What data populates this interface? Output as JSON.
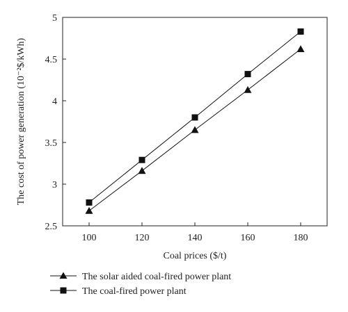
{
  "chart_data": {
    "type": "line",
    "title": "",
    "xlabel": "Coal prices ($/t)",
    "ylabel": "The cost of power generation (10⁻²$/kWh)",
    "x": [
      100,
      120,
      140,
      160,
      180
    ],
    "xlim": [
      90,
      190
    ],
    "ylim": [
      2.5,
      5
    ],
    "xticks": [
      100,
      120,
      140,
      160,
      180
    ],
    "yticks": [
      2.5,
      3,
      3.5,
      4,
      4.5,
      5
    ],
    "xtick_labels": [
      "100",
      "120",
      "140",
      "160",
      "180"
    ],
    "ytick_labels": [
      "2.5",
      "3",
      "3.5",
      "4",
      "4.5",
      "5"
    ],
    "grid": false,
    "legend_position": "below-plot",
    "series": [
      {
        "name": "The solar aided coal-fired power plant",
        "marker": "triangle",
        "color": "#111111",
        "values": [
          2.68,
          3.16,
          3.65,
          4.13,
          4.62
        ]
      },
      {
        "name": "The coal-fired power plant",
        "marker": "square",
        "color": "#111111",
        "values": [
          2.78,
          3.29,
          3.8,
          4.32,
          4.83
        ]
      }
    ]
  }
}
